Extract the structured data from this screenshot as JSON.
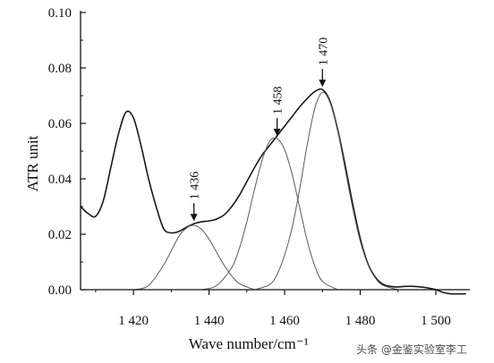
{
  "chart_data": {
    "type": "line",
    "xlabel": "Wave number/cm⁻¹",
    "ylabel": "ATR unit",
    "xlim": [
      1406,
      1509
    ],
    "ylim": [
      0,
      0.1
    ],
    "x_ticks": [
      1420,
      1440,
      1460,
      1480,
      1500
    ],
    "x_tick_labels": [
      "1 420",
      "1 440",
      "1 460",
      "1 480",
      "1 500"
    ],
    "y_ticks": [
      0,
      0.02,
      0.04,
      0.06,
      0.08,
      0.1
    ],
    "y_tick_labels": [
      "0.00",
      "0.02",
      "0.04",
      "0.06",
      "0.08",
      "0.10"
    ],
    "grid": false,
    "series": [
      {
        "x": [
          1406,
          1408,
          1410,
          1412,
          1414,
          1416,
          1418,
          1420,
          1422,
          1424,
          1426,
          1428,
          1430,
          1432,
          1434,
          1436,
          1438,
          1440,
          1442,
          1444,
          1446,
          1448,
          1450,
          1452,
          1454,
          1456,
          1458,
          1460,
          1462,
          1464,
          1466,
          1468,
          1470,
          1472,
          1474,
          1476,
          1478,
          1480,
          1482,
          1484,
          1486,
          1488,
          1490,
          1492,
          1494,
          1496,
          1498,
          1500,
          1502,
          1504,
          1506,
          1508
        ],
        "y": [
          0.03,
          0.0275,
          0.0265,
          0.032,
          0.044,
          0.056,
          0.064,
          0.062,
          0.052,
          0.04,
          0.03,
          0.022,
          0.0205,
          0.021,
          0.0225,
          0.0238,
          0.0245,
          0.0248,
          0.0255,
          0.027,
          0.03,
          0.034,
          0.039,
          0.044,
          0.0485,
          0.052,
          0.0555,
          0.059,
          0.0625,
          0.066,
          0.069,
          0.0715,
          0.0722,
          0.068,
          0.058,
          0.045,
          0.031,
          0.0185,
          0.0095,
          0.0045,
          0.002,
          0.0012,
          0.001,
          0.0012,
          0.0012,
          0.001,
          0.0006,
          0.0,
          -0.001,
          -0.0015,
          -0.0015,
          -0.0015
        ]
      },
      {
        "x": [
          1420,
          1424,
          1428,
          1430,
          1432,
          1434,
          1436,
          1438,
          1440,
          1442,
          1444,
          1446,
          1448,
          1452
        ],
        "y": [
          0.0,
          0.0015,
          0.009,
          0.014,
          0.0192,
          0.0222,
          0.0232,
          0.0218,
          0.0182,
          0.0135,
          0.0088,
          0.005,
          0.0022,
          0.0
        ]
      },
      {
        "x": [
          1438,
          1442,
          1446,
          1448,
          1450,
          1452,
          1454,
          1456,
          1458,
          1460,
          1462,
          1464,
          1466,
          1468,
          1470,
          1474
        ],
        "y": [
          0.0,
          0.0015,
          0.008,
          0.0148,
          0.0245,
          0.036,
          0.0465,
          0.0535,
          0.0545,
          0.0505,
          0.0415,
          0.0295,
          0.0175,
          0.0085,
          0.003,
          0.0
        ]
      },
      {
        "x": [
          1452,
          1456,
          1458,
          1460,
          1462,
          1464,
          1466,
          1468,
          1470,
          1472,
          1474,
          1476,
          1478,
          1480,
          1482,
          1484,
          1486,
          1490
        ],
        "y": [
          0.0,
          0.0018,
          0.0055,
          0.0125,
          0.0225,
          0.0365,
          0.0525,
          0.0655,
          0.0712,
          0.0675,
          0.0575,
          0.0435,
          0.0295,
          0.0175,
          0.0092,
          0.0042,
          0.0016,
          0.0
        ]
      }
    ],
    "annotations": [
      {
        "label": "1 436",
        "x": 1436,
        "y": 0.0238
      },
      {
        "label": "1 458",
        "x": 1458,
        "y": 0.0545
      },
      {
        "label": "1 470",
        "x": 1470,
        "y": 0.0722
      }
    ]
  },
  "watermark": "头条 @金鉴实验室李工"
}
